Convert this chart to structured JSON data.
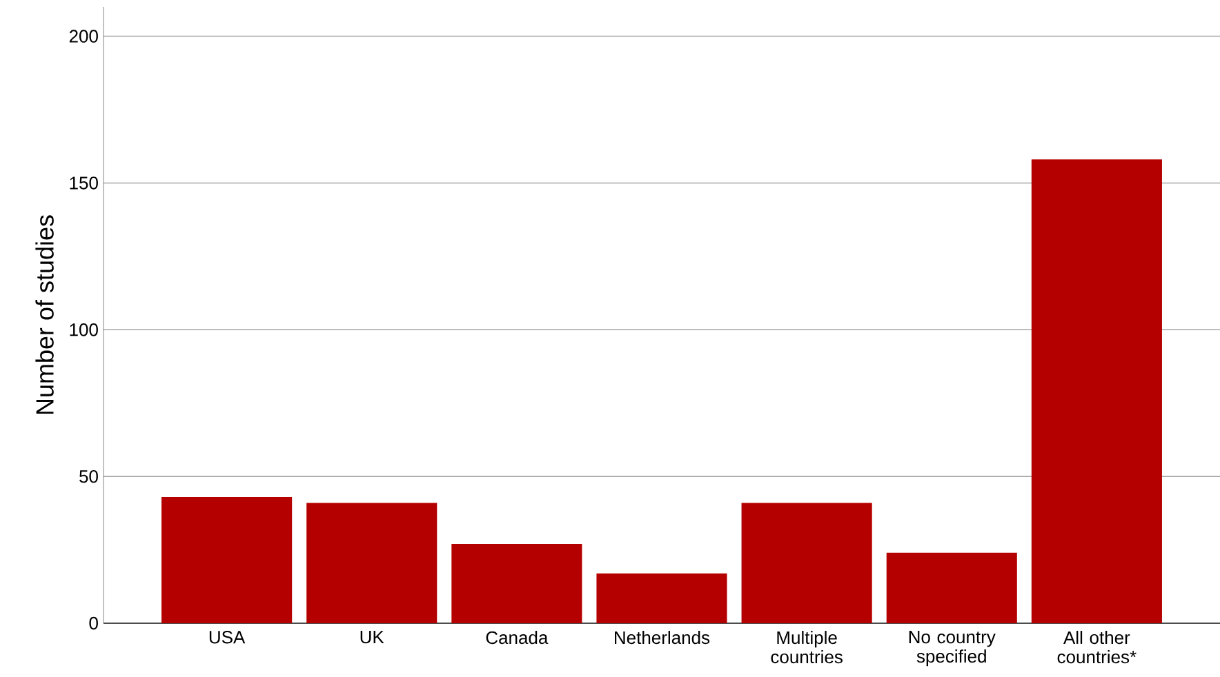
{
  "chart_data": {
    "type": "bar",
    "ylabel": "Number of studies",
    "categories": [
      "USA",
      "UK",
      "Canada",
      "Netherlands",
      "Multiple countries",
      "No country specified",
      "All other countries*"
    ],
    "values": [
      43,
      41,
      27,
      17,
      41,
      24,
      158
    ],
    "color": "#b50000",
    "ylim": [
      0,
      210
    ],
    "yticks": [
      0,
      50,
      100,
      150,
      200
    ],
    "grid": "y"
  }
}
